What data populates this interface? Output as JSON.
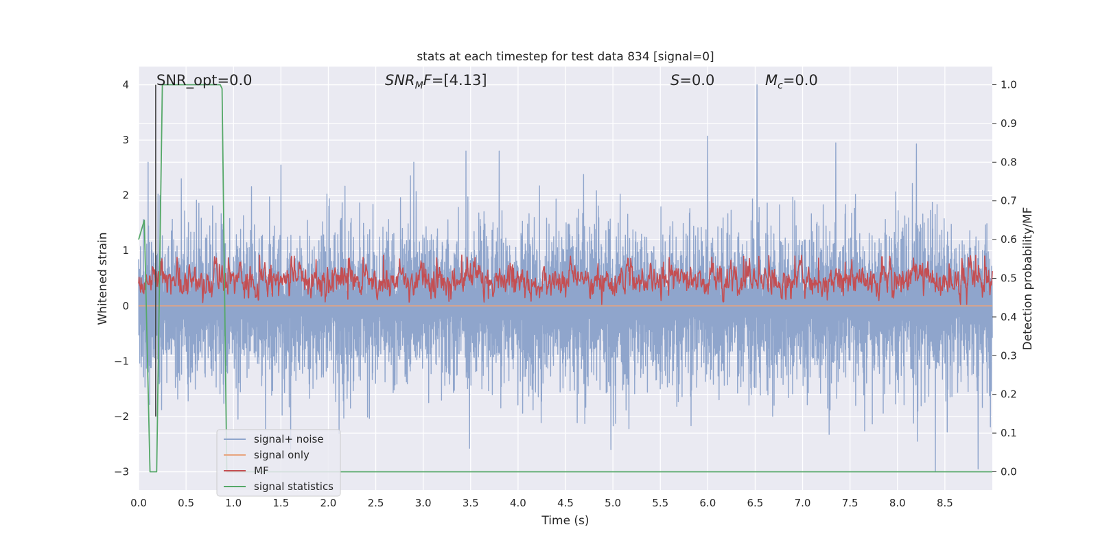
{
  "chart_data": {
    "type": "line",
    "title": "stats at each timestep for test data 834 [signal=0]",
    "xlabel": "Time (s)",
    "ylabel_left": "Whitened strain",
    "ylabel_right": "Detection probability/MF",
    "xlim": [
      0.0,
      9.0
    ],
    "ylim_left": [
      -3.33,
      4.33
    ],
    "ylim_right": [
      -0.047,
      1.047
    ],
    "x_ticks": [
      "0.0",
      "0.5",
      "1.0",
      "1.5",
      "2.0",
      "2.5",
      "3.0",
      "3.5",
      "4.0",
      "4.5",
      "5.0",
      "5.5",
      "6.0",
      "6.5",
      "7.0",
      "7.5",
      "8.0",
      "8.5"
    ],
    "y_left_ticks": [
      "4",
      "3",
      "2",
      "1",
      "0",
      "−1",
      "−2",
      "−3"
    ],
    "y_right_ticks": [
      "1.0",
      "0.9",
      "0.8",
      "0.7",
      "0.6",
      "0.5",
      "0.4",
      "0.3",
      "0.2",
      "0.1",
      "0.0"
    ],
    "grid": true,
    "legend_position": "lower-left",
    "annotations": {
      "snr_opt": "SNR_opt=0.0",
      "snr_mf_main": "SNR",
      "snr_mf_sub": "M",
      "snr_mf_rest": "F",
      "snr_mf_value": "=[4.13]",
      "s_main": "S",
      "s_value": "=0.0",
      "mc_main": "M",
      "mc_sub": "c",
      "mc_value": "=0.0"
    },
    "series": [
      {
        "name": "signal+ noise",
        "axis": "left",
        "color": "#8fa5cc",
        "description_of_shape": "dense whitened noise around 0",
        "amplitude_range": [
          -3.0,
          4.0
        ],
        "peaks": [
          [
            0.1,
            2.6
          ],
          [
            1.5,
            2.55
          ],
          [
            2.9,
            2.6
          ],
          [
            3.45,
            2.8
          ],
          [
            3.8,
            2.8
          ],
          [
            6.0,
            3.07
          ],
          [
            6.52,
            4.0
          ],
          [
            7.35,
            2.95
          ],
          [
            8.2,
            2.93
          ],
          [
            8.4,
            -3.0
          ],
          [
            8.85,
            -2.95
          ]
        ]
      },
      {
        "name": "signal only",
        "axis": "left",
        "color": "#e8a47e",
        "x": [
          0.0,
          9.0
        ],
        "y": [
          0.0,
          0.0
        ]
      },
      {
        "name": "MF",
        "axis": "right",
        "color": "#c44e52",
        "description_of_shape": "matched-filter output fluctuating around 0.45-0.5",
        "amplitude_range": [
          0.43,
          0.56
        ]
      },
      {
        "name": "signal statistics",
        "axis": "right",
        "color": "#55a868",
        "x": [
          0.0,
          0.06,
          0.12,
          0.19,
          0.25,
          0.86,
          0.88,
          0.93,
          9.0
        ],
        "y": [
          0.6,
          0.65,
          0.0,
          0.0,
          1.0,
          1.0,
          0.99,
          0.0,
          0.0
        ]
      }
    ],
    "vertical_marker": {
      "x": 0.18,
      "y_range": [
        -2.0,
        4.0
      ],
      "color": "#444444"
    }
  }
}
